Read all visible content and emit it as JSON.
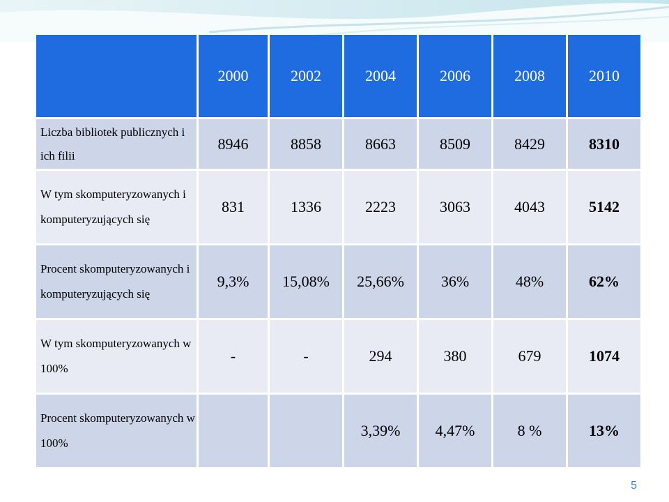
{
  "table": {
    "years": [
      "2000",
      "2002",
      "2004",
      "2006",
      "2008",
      "2010"
    ],
    "rows": [
      {
        "label": "Liczba bibliotek publicznych i ich filii",
        "values": [
          "8946",
          "8858",
          "8663",
          "8509",
          "8429",
          "8310"
        ]
      },
      {
        "label": "W tym skomputeryzowanych i komputeryzujących się",
        "values": [
          "831",
          "1336",
          "2223",
          "3063",
          "4043",
          "5142"
        ]
      },
      {
        "label": "Procent skomputeryzowanych i komputeryzujących się",
        "values": [
          "9,3%",
          "15,08%",
          "25,66%",
          "36%",
          "48%",
          "62%"
        ]
      },
      {
        "label": "W tym skomputeryzowanych w 100%",
        "values": [
          "-",
          "-",
          "294",
          "380",
          "679",
          "1074"
        ]
      },
      {
        "label": "Procent skomputeryzowanych w 100%",
        "values": [
          "",
          "",
          "3,39%",
          "4,47%",
          "8 %",
          "13%"
        ]
      }
    ]
  },
  "page_number": "5"
}
